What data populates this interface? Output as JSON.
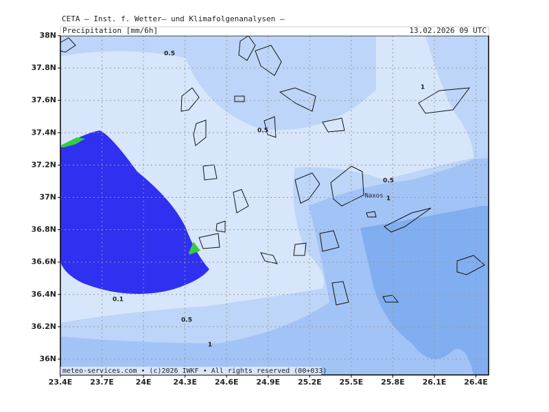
{
  "header": {
    "title": "CETA – Inst. f. Wetter– und Klimafolgenanalysen –",
    "product": "Precipitation [mm/6h]",
    "valid_time": "13.02.2026 09 UTC"
  },
  "footer": "meteo-services.com • (c)2026 IWKF • All rights reserved (00+033)",
  "axes": {
    "latitude": [
      "38N",
      "37.8N",
      "37.6N",
      "37.4N",
      "37.2N",
      "37N",
      "36.8N",
      "36.6N",
      "36.4N",
      "36.2N",
      "36N"
    ],
    "longitude": [
      "23.4E",
      "23.7E",
      "24E",
      "24.3E",
      "24.6E",
      "24.9E",
      "25.2E",
      "25.5E",
      "25.8E",
      "26.1E",
      "26.4E"
    ]
  },
  "contour_labels": [
    "0.5",
    "0.5",
    "1",
    "0.5",
    "1",
    "0.1",
    "0.5",
    "1"
  ],
  "places": [
    "Naxos"
  ]
}
